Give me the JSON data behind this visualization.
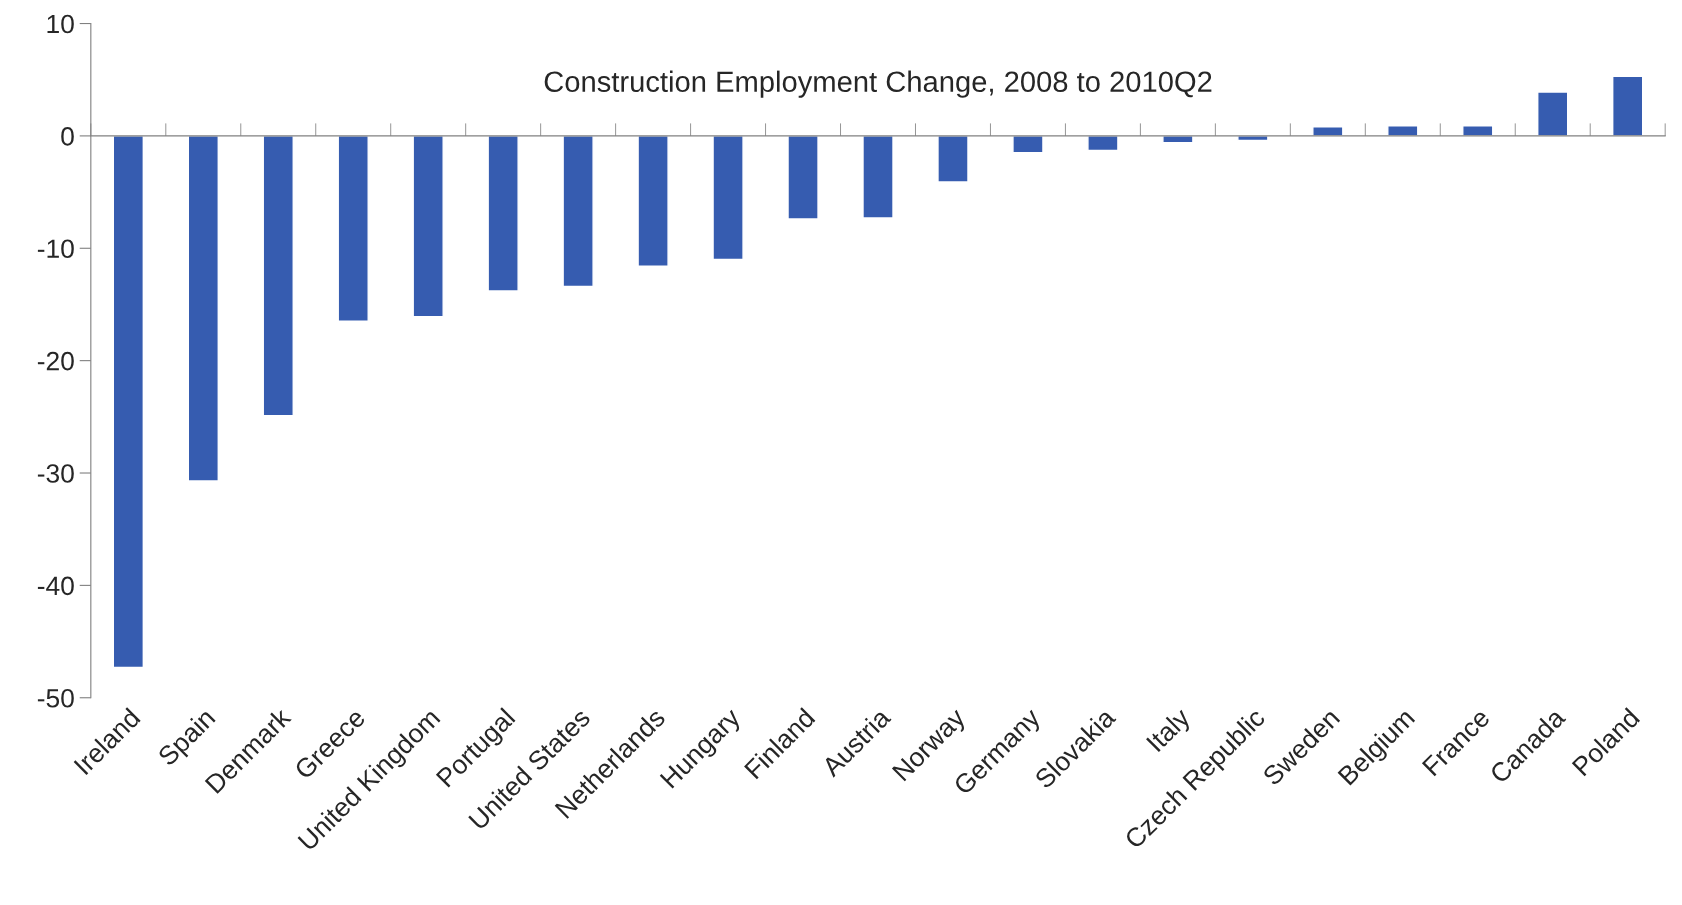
{
  "chart_data": {
    "type": "bar",
    "title": "Construction Employment Change, 2008 to 2010Q2",
    "categories": [
      "Ireland",
      "Spain",
      "Denmark",
      "Greece",
      "United Kingdom",
      "Portugal",
      "United States",
      "Netherlands",
      "Hungary",
      "Finland",
      "Austria",
      "Norway",
      "Germany",
      "Slovakia",
      "Italy",
      "Czech Republic",
      "Sweden",
      "Belgium",
      "France",
      "Canada",
      "Poland"
    ],
    "values": [
      -47.3,
      -30.7,
      -24.9,
      -16.5,
      -16.1,
      -13.8,
      -13.4,
      -11.6,
      -11.0,
      -7.4,
      -7.3,
      -4.1,
      -1.5,
      -1.3,
      -0.6,
      -0.4,
      0.8,
      0.9,
      0.9,
      3.9,
      5.3
    ],
    "color": "#365cb0",
    "ylim": [
      -50,
      10
    ],
    "yticks": [
      -50,
      -40,
      -30,
      -20,
      -10,
      0,
      10
    ]
  }
}
